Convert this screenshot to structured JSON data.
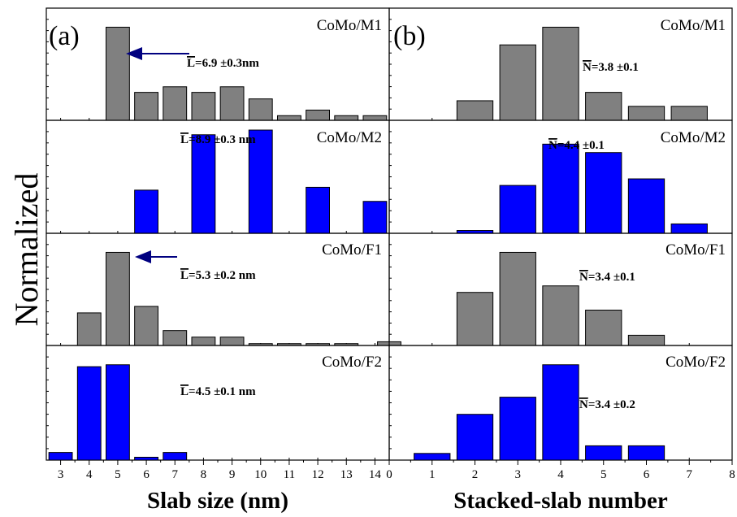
{
  "colors": {
    "gray": "#808080",
    "blue": "#0000ff",
    "arrow": "#000080"
  },
  "y_label": "Normalized",
  "chart_data": [
    {
      "type": "bar",
      "panel": "(a)",
      "xlabel": "Slab size (nm)",
      "xlim": [
        2.5,
        14.5
      ],
      "xticks": [
        "3",
        "4",
        "5",
        "6",
        "7",
        "8",
        "9",
        "10",
        "11",
        "12",
        "13",
        "14"
      ],
      "subplots": [
        {
          "label": "CoMo/M1",
          "color": "gray",
          "stat_symbol": "L",
          "stat_rest": "=6.9 ±0.3nm",
          "arrow": true,
          "x": [
            5,
            6,
            7,
            8,
            9,
            10,
            11,
            12,
            13,
            14
          ],
          "values": [
            100,
            30,
            36,
            30,
            36,
            23,
            5,
            11,
            5,
            5
          ]
        },
        {
          "label": "CoMo/M2",
          "color": "blue",
          "stat_symbol": "L",
          "stat_rest": "=8.9 ±0.3 nm",
          "arrow": false,
          "x": [
            6,
            8,
            10,
            12,
            14
          ],
          "values": [
            46,
            105,
            110,
            49,
            34
          ]
        },
        {
          "label": "CoMo/F1",
          "color": "gray",
          "stat_symbol": "L",
          "stat_rest": "=5.3 ±0.2 nm",
          "arrow": true,
          "x": [
            4,
            5,
            6,
            7,
            8,
            9,
            10,
            11,
            12,
            13,
            14.5
          ],
          "values": [
            35,
            100,
            42,
            16,
            9,
            9,
            2,
            2,
            2,
            2,
            4
          ]
        },
        {
          "label": "CoMo/F2",
          "color": "blue",
          "stat_symbol": "L",
          "stat_rest": "=4.5 ±0.1 nm",
          "arrow": false,
          "x": [
            3,
            4,
            5,
            6,
            7
          ],
          "values": [
            8,
            98,
            100,
            3,
            8
          ]
        }
      ]
    },
    {
      "type": "bar",
      "panel": "(b)",
      "xlabel": "Stacked-slab number",
      "xlim": [
        0,
        8
      ],
      "xticks": [
        "0",
        "1",
        "2",
        "3",
        "4",
        "5",
        "6",
        "7",
        "8"
      ],
      "subplots": [
        {
          "label": "CoMo/M1",
          "color": "gray",
          "stat_symbol": "N",
          "stat_rest": "=3.8 ±0.1",
          "x": [
            2,
            3,
            4,
            5,
            6,
            7
          ],
          "values": [
            21,
            81,
            100,
            30,
            15,
            15
          ]
        },
        {
          "label": "CoMo/M2",
          "color": "blue",
          "stat_symbol": "N",
          "stat_rest": "=4.4 ±0.1",
          "x": [
            2,
            3,
            4,
            5,
            6,
            7
          ],
          "values": [
            3,
            51,
            95,
            86,
            58,
            10
          ]
        },
        {
          "label": "CoMo/F1",
          "color": "gray",
          "stat_symbol": "N",
          "stat_rest": "=3.4 ±0.1",
          "x": [
            2,
            3,
            4,
            5,
            6
          ],
          "values": [
            57,
            100,
            64,
            38,
            11
          ]
        },
        {
          "label": "CoMo/F2",
          "color": "blue",
          "stat_symbol": "N",
          "stat_rest": "=3.4 ±0.2",
          "x": [
            1,
            2,
            3,
            4,
            5,
            6
          ],
          "values": [
            7,
            48,
            66,
            100,
            15,
            15
          ]
        }
      ]
    }
  ]
}
